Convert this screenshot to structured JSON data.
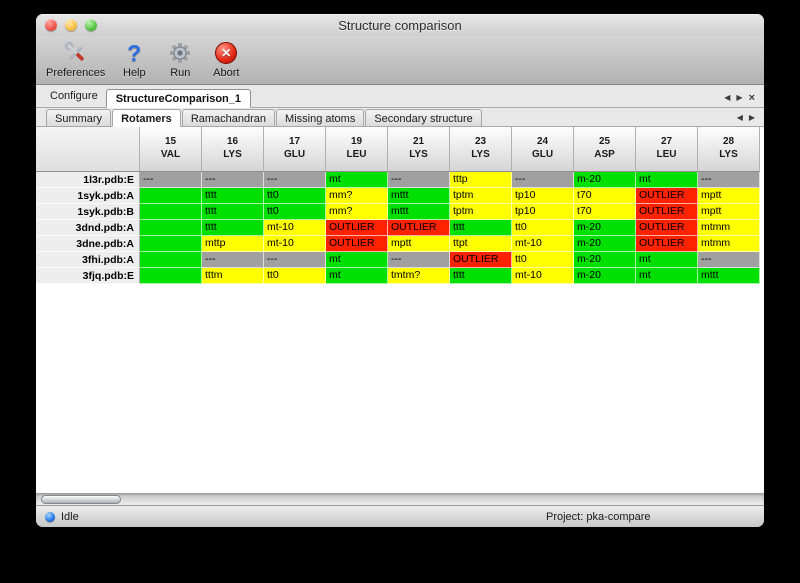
{
  "window": {
    "title": "Structure comparison"
  },
  "toolbar": {
    "buttons": [
      {
        "label": "Preferences",
        "icon": "preferences-tools-icon"
      },
      {
        "label": "Help",
        "icon": "help-question-icon"
      },
      {
        "label": "Run",
        "icon": "run-gear-icon"
      },
      {
        "label": "Abort",
        "icon": "abort-x-icon"
      }
    ]
  },
  "configure_bar": {
    "label": "Configure",
    "tab_label": "StructureComparison_1",
    "arrow_left": "◀",
    "arrow_right": "▶",
    "close": "×"
  },
  "view_tabs": [
    {
      "label": "Summary",
      "selected": false
    },
    {
      "label": "Rotamers",
      "selected": true
    },
    {
      "label": "Ramachandran",
      "selected": false
    },
    {
      "label": "Missing atoms",
      "selected": false
    },
    {
      "label": "Secondary structure",
      "selected": false
    }
  ],
  "table": {
    "columns": [
      {
        "num": "15",
        "res": "VAL"
      },
      {
        "num": "16",
        "res": "LYS"
      },
      {
        "num": "17",
        "res": "GLU"
      },
      {
        "num": "19",
        "res": "LEU"
      },
      {
        "num": "21",
        "res": "LYS"
      },
      {
        "num": "23",
        "res": "LYS"
      },
      {
        "num": "24",
        "res": "GLU"
      },
      {
        "num": "25",
        "res": "ASP"
      },
      {
        "num": "27",
        "res": "LEU"
      },
      {
        "num": "28",
        "res": "LYS"
      }
    ],
    "rows": [
      {
        "label": "1l3r.pdb:E",
        "cells": [
          {
            "t": "---",
            "c": "gray"
          },
          {
            "t": "---",
            "c": "gray"
          },
          {
            "t": "---",
            "c": "gray"
          },
          {
            "t": "mt",
            "c": "green"
          },
          {
            "t": "---",
            "c": "gray"
          },
          {
            "t": "tttp",
            "c": "yellow"
          },
          {
            "t": "---",
            "c": "gray"
          },
          {
            "t": "m-20",
            "c": "green"
          },
          {
            "t": "mt",
            "c": "green"
          },
          {
            "t": "---",
            "c": "gray"
          }
        ]
      },
      {
        "label": "1syk.pdb:A",
        "cells": [
          {
            "t": "",
            "c": "green"
          },
          {
            "t": "tttt",
            "c": "green"
          },
          {
            "t": "tt0",
            "c": "green"
          },
          {
            "t": "mm?",
            "c": "yellow"
          },
          {
            "t": "mttt",
            "c": "green"
          },
          {
            "t": "tptm",
            "c": "yellow"
          },
          {
            "t": "tp10",
            "c": "yellow"
          },
          {
            "t": "t70",
            "c": "yellow"
          },
          {
            "t": "OUTLIER",
            "c": "red"
          },
          {
            "t": "mptt",
            "c": "yellow"
          }
        ]
      },
      {
        "label": "1syk.pdb:B",
        "cells": [
          {
            "t": "",
            "c": "green"
          },
          {
            "t": "tttt",
            "c": "green"
          },
          {
            "t": "tt0",
            "c": "green"
          },
          {
            "t": "mm?",
            "c": "yellow"
          },
          {
            "t": "mttt",
            "c": "green"
          },
          {
            "t": "tptm",
            "c": "yellow"
          },
          {
            "t": "tp10",
            "c": "yellow"
          },
          {
            "t": "t70",
            "c": "yellow"
          },
          {
            "t": "OUTLIER",
            "c": "red"
          },
          {
            "t": "mptt",
            "c": "yellow"
          }
        ]
      },
      {
        "label": "3dnd.pdb:A",
        "cells": [
          {
            "t": "",
            "c": "green"
          },
          {
            "t": "tttt",
            "c": "green"
          },
          {
            "t": "mt-10",
            "c": "yellow"
          },
          {
            "t": "OUTLIER",
            "c": "red"
          },
          {
            "t": "OUTLIER",
            "c": "red"
          },
          {
            "t": "tttt",
            "c": "green"
          },
          {
            "t": "tt0",
            "c": "yellow"
          },
          {
            "t": "m-20",
            "c": "green"
          },
          {
            "t": "OUTLIER",
            "c": "red"
          },
          {
            "t": "mtmm",
            "c": "yellow"
          }
        ]
      },
      {
        "label": "3dne.pdb:A",
        "cells": [
          {
            "t": "",
            "c": "green"
          },
          {
            "t": "mttp",
            "c": "yellow"
          },
          {
            "t": "mt-10",
            "c": "yellow"
          },
          {
            "t": "OUTLIER",
            "c": "red"
          },
          {
            "t": "mptt",
            "c": "yellow"
          },
          {
            "t": "ttpt",
            "c": "yellow"
          },
          {
            "t": "mt-10",
            "c": "yellow"
          },
          {
            "t": "m-20",
            "c": "green"
          },
          {
            "t": "OUTLIER",
            "c": "red"
          },
          {
            "t": "mtmm",
            "c": "yellow"
          }
        ]
      },
      {
        "label": "3fhi.pdb:A",
        "cells": [
          {
            "t": "",
            "c": "green"
          },
          {
            "t": "---",
            "c": "gray"
          },
          {
            "t": "---",
            "c": "gray"
          },
          {
            "t": "mt",
            "c": "green"
          },
          {
            "t": "---",
            "c": "gray"
          },
          {
            "t": "OUTLIER",
            "c": "red"
          },
          {
            "t": "tt0",
            "c": "yellow"
          },
          {
            "t": "m-20",
            "c": "green"
          },
          {
            "t": "mt",
            "c": "green"
          },
          {
            "t": "---",
            "c": "gray"
          }
        ]
      },
      {
        "label": "3fjq.pdb:E",
        "cells": [
          {
            "t": "",
            "c": "green"
          },
          {
            "t": "tttm",
            "c": "yellow"
          },
          {
            "t": "tt0",
            "c": "yellow"
          },
          {
            "t": "mt",
            "c": "green"
          },
          {
            "t": "tmtm?",
            "c": "yellow"
          },
          {
            "t": "tttt",
            "c": "green"
          },
          {
            "t": "mt-10",
            "c": "yellow"
          },
          {
            "t": "m-20",
            "c": "green"
          },
          {
            "t": "mt",
            "c": "green"
          },
          {
            "t": "mttt",
            "c": "green"
          }
        ]
      }
    ]
  },
  "status_bar": {
    "left_text": "Idle",
    "right_text": "Project: pka-compare"
  },
  "colors": {
    "green": "#00e000",
    "yellow": "#ffff00",
    "red": "#ff2200",
    "gray": "#a0a0a0"
  }
}
